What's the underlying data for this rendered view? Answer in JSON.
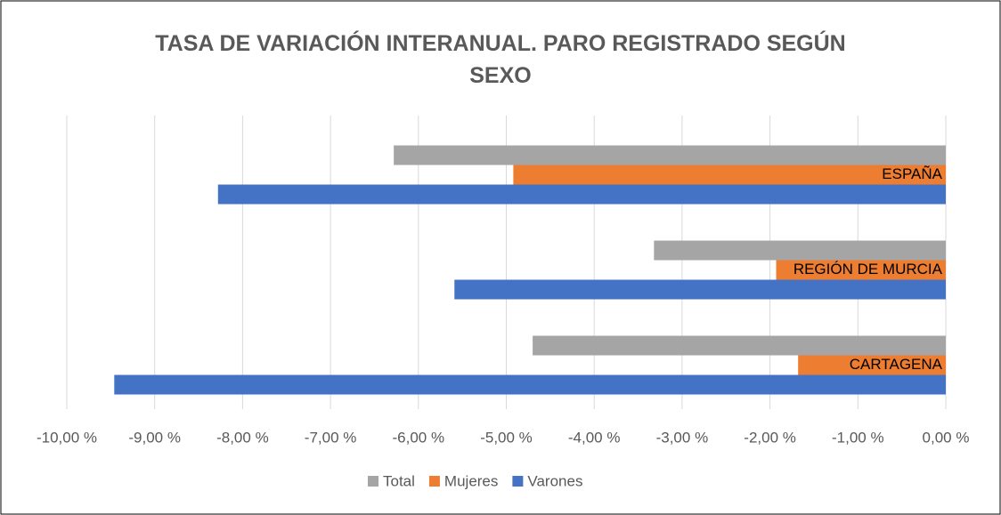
{
  "chart_data": {
    "type": "hbar",
    "title": "TASA DE VARIACIÓN INTERANUAL. PARO REGISTRADO SEGÚN SEXO",
    "categories": [
      "ESPAÑA",
      "REGIÓN DE MURCIA",
      "CARTAGENA"
    ],
    "series": [
      {
        "name": "Total",
        "color": "#a5a5a5",
        "values": [
          -6.28,
          -3.32,
          -4.7
        ]
      },
      {
        "name": "Mujeres",
        "color": "#ed7d31",
        "values": [
          -4.92,
          -1.93,
          -1.68
        ]
      },
      {
        "name": "Varones",
        "color": "#4472c4",
        "values": [
          -8.28,
          -5.59,
          -9.46
        ]
      }
    ],
    "xlim": [
      -10,
      0
    ],
    "xticks": [
      {
        "value": -10,
        "label": "-10,00 %"
      },
      {
        "value": -9,
        "label": "-9,00 %"
      },
      {
        "value": -8,
        "label": "-8,00 %"
      },
      {
        "value": -7,
        "label": "-7,00 %"
      },
      {
        "value": -6,
        "label": "-6,00 %"
      },
      {
        "value": -5,
        "label": "-5,00 %"
      },
      {
        "value": -4,
        "label": "-4,00 %"
      },
      {
        "value": -3,
        "label": "-3,00 %"
      },
      {
        "value": -2,
        "label": "-2,00 %"
      },
      {
        "value": -1,
        "label": "-1,00 %"
      },
      {
        "value": 0,
        "label": "0,00 %"
      }
    ],
    "grid": true,
    "legend": "bottom"
  }
}
